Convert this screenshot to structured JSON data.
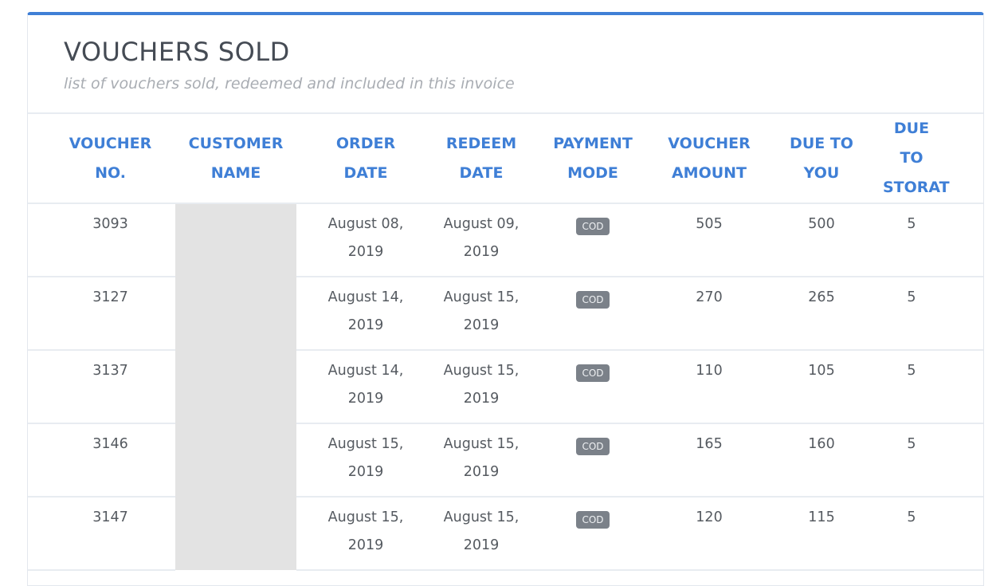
{
  "section": {
    "title": "VOUCHERS SOLD",
    "subtitle": "list of vouchers sold, redeemed and included in this invoice"
  },
  "colors": {
    "accent": "#3f7fd6",
    "badge": "#7b8189",
    "redacted": "#e3e3e3"
  },
  "table": {
    "columns": [
      [
        "VOUCHER",
        "NO."
      ],
      [
        "CUSTOMER",
        "NAME"
      ],
      [
        "ORDER",
        "DATE"
      ],
      [
        "REDEEM",
        "DATE"
      ],
      [
        "PAYMENT",
        "MODE"
      ],
      [
        "VOUCHER",
        "AMOUNT"
      ],
      [
        "DUE TO",
        "YOU"
      ],
      [
        "DUE TO",
        "STORAT"
      ]
    ],
    "rows": [
      {
        "voucher_no": "3093",
        "customer_name": "",
        "order_date": [
          "August 08,",
          "2019"
        ],
        "redeem_date": [
          "August 09,",
          "2019"
        ],
        "payment_mode": "COD",
        "voucher_amount": "505",
        "due_to_you": "500",
        "due_to_storat": "5"
      },
      {
        "voucher_no": "3127",
        "customer_name": "",
        "order_date": [
          "August 14,",
          "2019"
        ],
        "redeem_date": [
          "August 15,",
          "2019"
        ],
        "payment_mode": "COD",
        "voucher_amount": "270",
        "due_to_you": "265",
        "due_to_storat": "5"
      },
      {
        "voucher_no": "3137",
        "customer_name": "",
        "order_date": [
          "August 14,",
          "2019"
        ],
        "redeem_date": [
          "August 15,",
          "2019"
        ],
        "payment_mode": "COD",
        "voucher_amount": "110",
        "due_to_you": "105",
        "due_to_storat": "5"
      },
      {
        "voucher_no": "3146",
        "customer_name": "",
        "order_date": [
          "August 15,",
          "2019"
        ],
        "redeem_date": [
          "August 15,",
          "2019"
        ],
        "payment_mode": "COD",
        "voucher_amount": "165",
        "due_to_you": "160",
        "due_to_storat": "5"
      },
      {
        "voucher_no": "3147",
        "customer_name": "",
        "order_date": [
          "August 15,",
          "2019"
        ],
        "redeem_date": [
          "August 15,",
          "2019"
        ],
        "payment_mode": "COD",
        "voucher_amount": "120",
        "due_to_you": "115",
        "due_to_storat": "5"
      }
    ]
  }
}
